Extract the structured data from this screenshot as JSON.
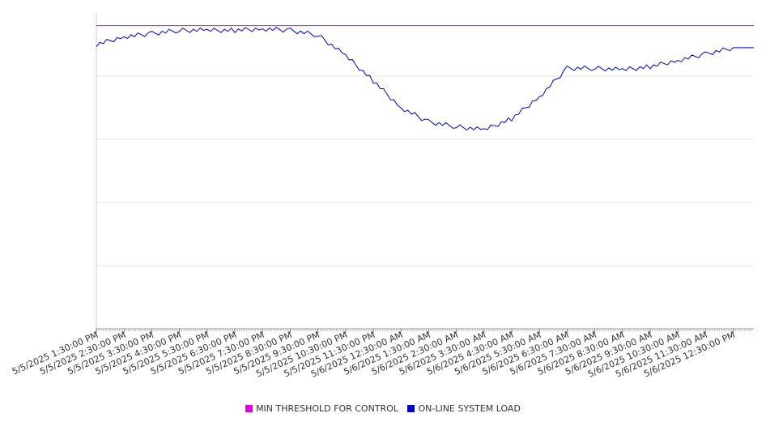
{
  "chart_data": {
    "type": "line",
    "title": "",
    "xlabel": "",
    "ylabel": "",
    "ylim": [
      0,
      100
    ],
    "grid": true,
    "legend_position": "bottom-center",
    "categories": [
      "5/5/2025 1:30:00 PM",
      "5/5/2025 2:30:00 PM",
      "5/5/2025 3:30:00 PM",
      "5/5/2025 4:30:00 PM",
      "5/5/2025 5:30:00 PM",
      "5/5/2025 6:30:00 PM",
      "5/5/2025 7:30:00 PM",
      "5/5/2025 8:30:00 PM",
      "5/5/2025 9:30:00 PM",
      "5/5/2025 10:30:00 PM",
      "5/5/2025 11:30:00 PM",
      "5/6/2025 12:30:00 AM",
      "5/6/2025 1:30:00 AM",
      "5/6/2025 2:30:00 AM",
      "5/6/2025 3:30:00 AM",
      "5/6/2025 4:30:00 AM",
      "5/6/2025 5:30:00 AM",
      "5/6/2025 6:30:00 AM",
      "5/6/2025 7:30:00 AM",
      "5/6/2025 8:30:00 AM",
      "5/6/2025 9:30:00 AM",
      "5/6/2025 10:30:00 AM",
      "5/6/2025 11:30:00 AM",
      "5/6/2025 12:30:00 PM"
    ],
    "series": [
      {
        "name": "MIN THRESHOLD FOR CONTROL",
        "color": "#e000e0",
        "values": [
          96,
          96,
          96,
          96,
          96,
          96,
          96,
          96,
          96,
          96,
          96,
          96,
          96,
          96,
          96,
          96,
          96,
          96,
          96,
          96,
          96,
          96,
          96,
          96
        ]
      },
      {
        "name": "ON-LINE SYSTEM LOAD",
        "color": "#0000dd",
        "values": [
          90,
          92.5,
          93.5,
          94.5,
          94.5,
          94.5,
          95,
          94.5,
          93,
          86.5,
          78.5,
          70,
          65.5,
          64,
          63,
          66.5,
          73.5,
          82.5,
          82.5,
          82,
          83,
          85,
          87,
          89
        ]
      }
    ]
  }
}
